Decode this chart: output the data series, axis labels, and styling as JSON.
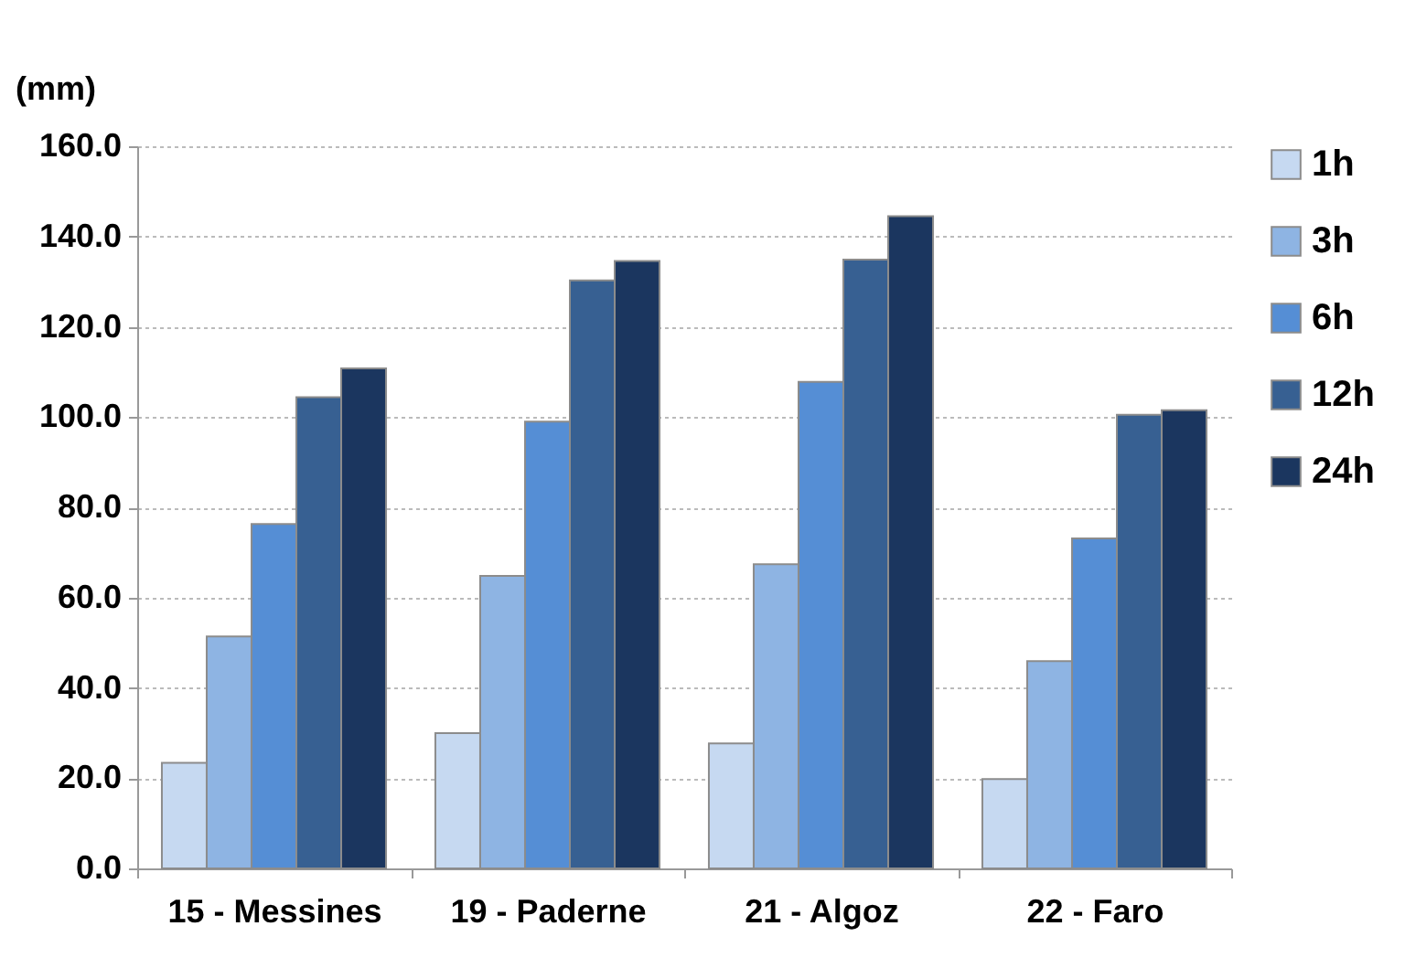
{
  "chart_data": {
    "type": "bar",
    "ylabel": "(mm)",
    "categories": [
      "15 - Messines",
      "19 - Paderne",
      "21 - Algoz",
      "22 - Faro"
    ],
    "series": [
      {
        "name": "1h",
        "color": "#c6d9f1",
        "values": [
          23.4,
          30.0,
          27.7,
          19.8
        ]
      },
      {
        "name": "3h",
        "color": "#8eb4e3",
        "values": [
          51.4,
          64.8,
          67.4,
          45.9
        ]
      },
      {
        "name": "6h",
        "color": "#558ed5",
        "values": [
          76.3,
          99.0,
          107.8,
          73.1
        ]
      },
      {
        "name": "12h",
        "color": "#376092",
        "values": [
          104.4,
          130.3,
          134.9,
          100.5
        ]
      },
      {
        "name": "24h",
        "color": "#1b365f",
        "values": [
          110.8,
          134.6,
          144.5,
          101.5
        ]
      }
    ],
    "ylim": [
      0,
      160
    ],
    "yticks": [
      {
        "value": 0,
        "label": "0.0"
      },
      {
        "value": 20,
        "label": "20.0"
      },
      {
        "value": 40,
        "label": "40.0"
      },
      {
        "value": 60,
        "label": "60.0"
      },
      {
        "value": 80,
        "label": "80.0"
      },
      {
        "value": 100,
        "label": "100.0"
      },
      {
        "value": 120,
        "label": "120.0"
      },
      {
        "value": 140,
        "label": "140.0"
      },
      {
        "value": 160,
        "label": "160.0"
      }
    ],
    "grid": "y",
    "legend": "right"
  }
}
